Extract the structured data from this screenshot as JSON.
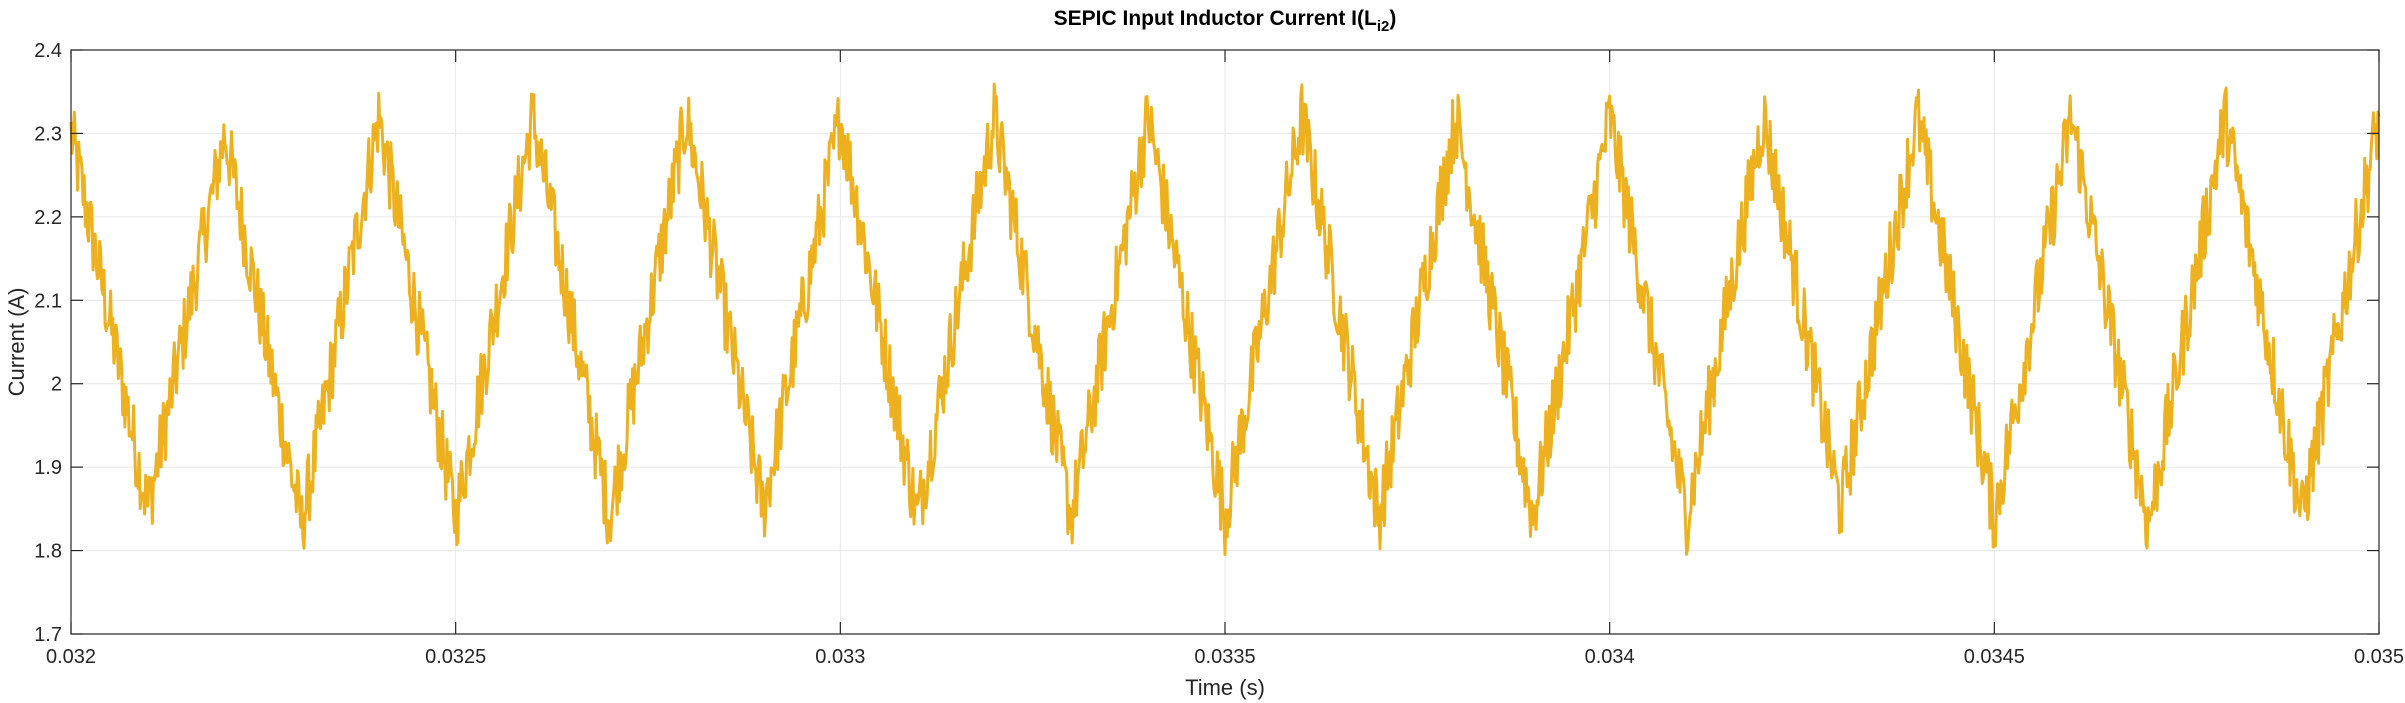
{
  "chart_data": {
    "type": "line",
    "title": "SEPIC Input Inductor Current I(L",
    "title_sub": "i2",
    "title_end": ")",
    "xlabel": "Time (s)",
    "ylabel": "Current (A)",
    "xlim": [
      0.032,
      0.035
    ],
    "ylim": [
      1.7,
      2.4
    ],
    "x_ticks": [
      0.032,
      0.0325,
      0.033,
      0.0335,
      0.034,
      0.0345,
      0.035
    ],
    "x_tick_labels": [
      "0.032",
      "0.0325",
      "0.033",
      "0.0335",
      "0.034",
      "0.0345",
      "0.035"
    ],
    "y_ticks": [
      1.7,
      1.8,
      1.9,
      2.0,
      2.1,
      2.2,
      2.3,
      2.4
    ],
    "y_tick_labels": [
      "1.7",
      "1.8",
      "1.9",
      "2",
      "2.1",
      "2.2",
      "2.3",
      "2.4"
    ],
    "grid": true,
    "colors": {
      "series": "#EDB120",
      "grid": "#e6e6e6",
      "axis": "#262626"
    },
    "series": [
      {
        "x": [
          0.032,
          0.0321,
          0.0322,
          0.0323,
          0.0324,
          0.0325,
          0.0326,
          0.0327,
          0.0328,
          0.0329,
          0.033,
          0.0331,
          0.0332,
          0.0333,
          0.0334,
          0.0335,
          0.0336,
          0.0337,
          0.0338,
          0.0339,
          0.034,
          0.0341,
          0.0342,
          0.0343,
          0.0344,
          0.0345,
          0.0346,
          0.0347,
          0.0348,
          0.0349,
          0.035
        ],
        "y": [
          2.3,
          1.85,
          2.3,
          1.83,
          2.32,
          1.84,
          2.32,
          1.84,
          2.32,
          1.85,
          2.32,
          1.84,
          2.32,
          1.84,
          2.32,
          1.84,
          2.32,
          1.84,
          2.32,
          1.84,
          2.32,
          1.84,
          2.32,
          1.85,
          2.32,
          1.84,
          2.32,
          1.83,
          2.32,
          1.84,
          2.32
        ]
      }
    ],
    "noise_amplitude": 0.045
  }
}
